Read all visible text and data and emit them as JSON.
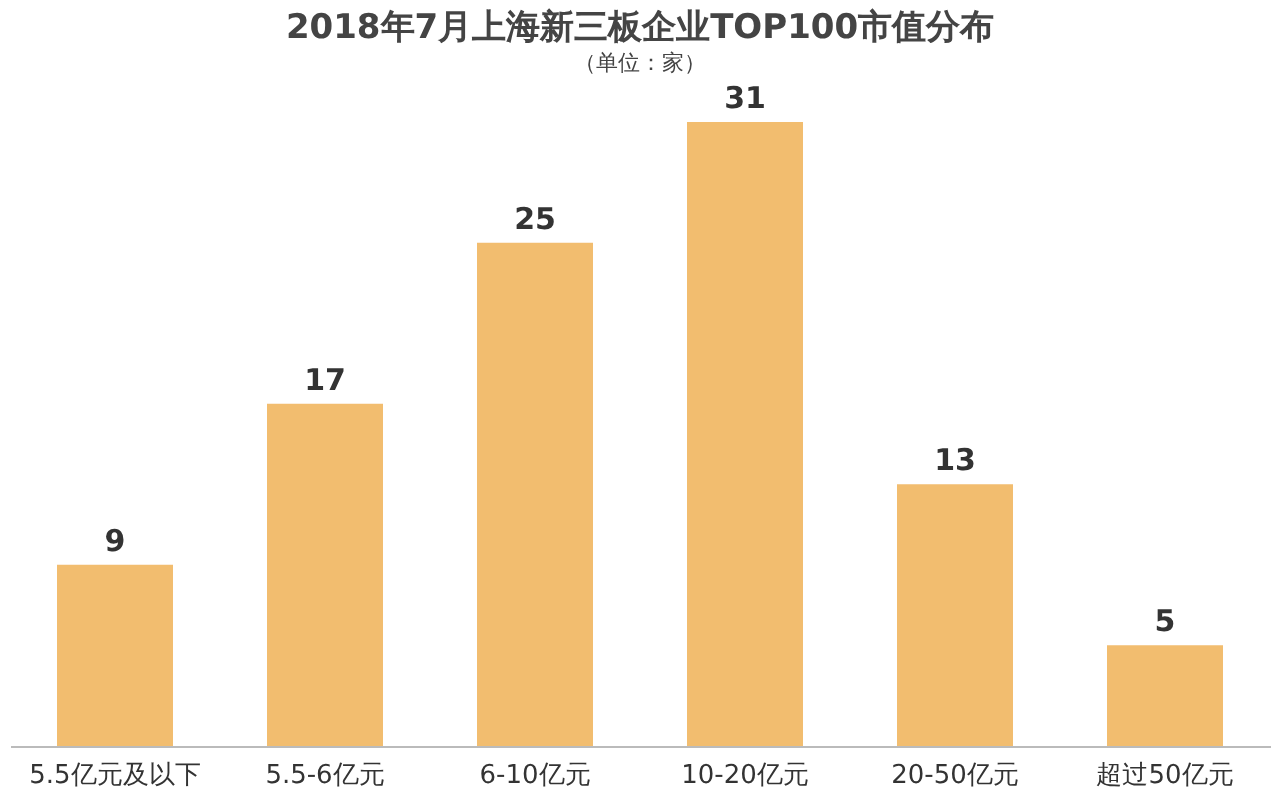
{
  "chart_data": {
    "type": "bar",
    "title": "2018年7月上海新三板企业TOP100市值分布",
    "subtitle": "（单位：家）",
    "categories": [
      "5.5亿元及以下",
      "5.5-6亿元",
      "6-10亿元",
      "10-20亿元",
      "20-50亿元",
      "超过50亿元"
    ],
    "values": [
      9,
      17,
      25,
      31,
      13,
      5
    ],
    "color": "#f2bd6f",
    "data_labels": true
  }
}
